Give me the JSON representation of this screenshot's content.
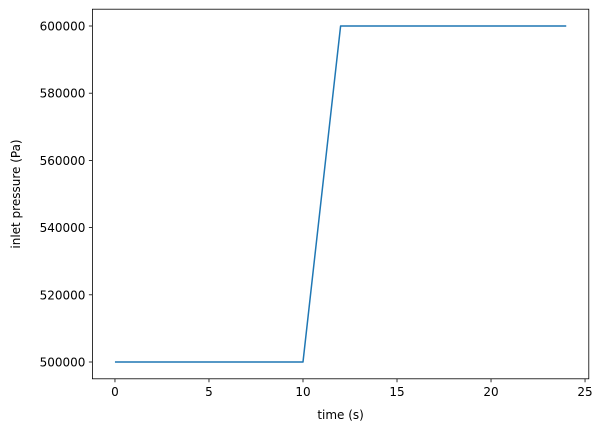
{
  "chart_data": {
    "type": "line",
    "title": "",
    "xlabel": "time (s)",
    "ylabel": "inlet pressure (Pa)",
    "xlim": [
      -1.2,
      25.2
    ],
    "ylim": [
      495000,
      605000
    ],
    "xticks": [
      0,
      5,
      10,
      15,
      20,
      25
    ],
    "yticks": [
      500000,
      520000,
      540000,
      560000,
      580000,
      600000
    ],
    "grid": false,
    "series": [
      {
        "color": "#1f77b4",
        "x": [
          0,
          10,
          12,
          24
        ],
        "y": [
          500000,
          500000,
          600000,
          600000
        ]
      }
    ]
  }
}
